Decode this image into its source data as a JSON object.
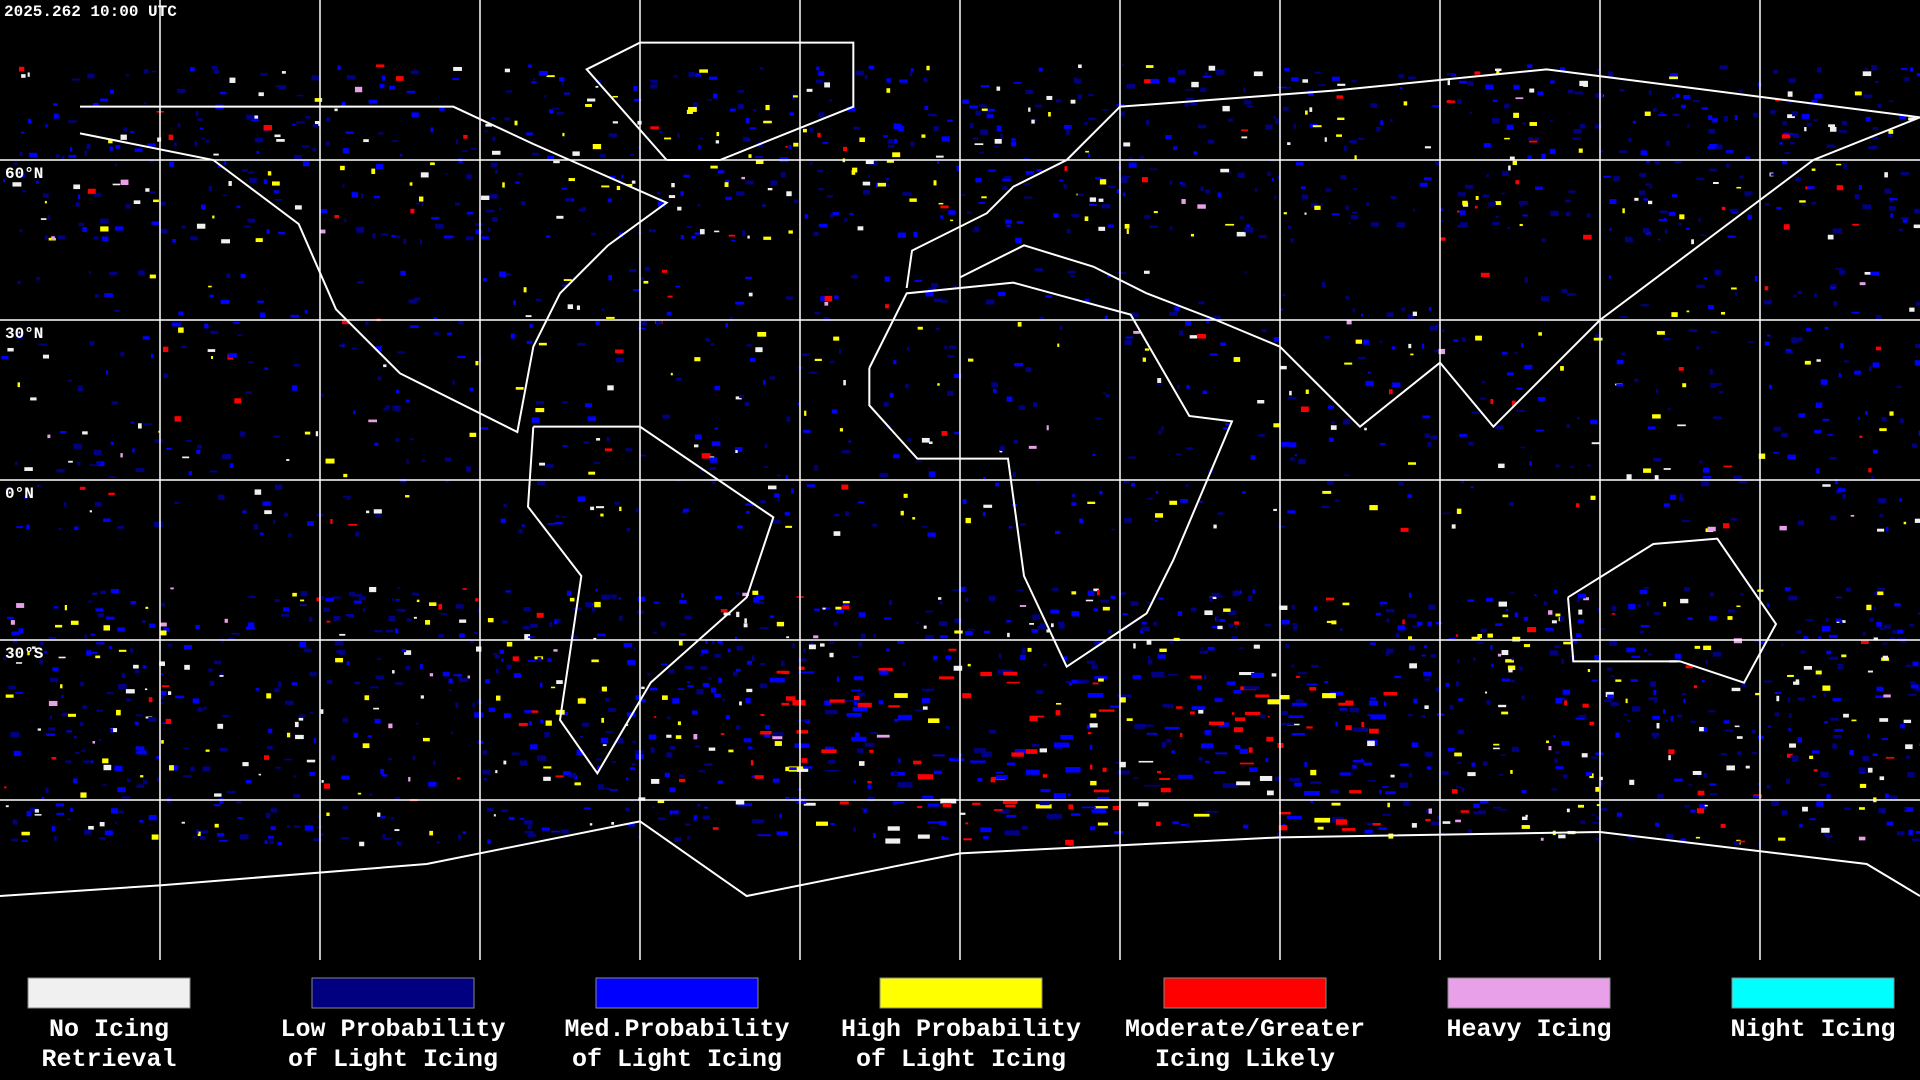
{
  "header": {
    "timestamp": "2025.262 10:00 UTC"
  },
  "map": {
    "latitude_labels": [
      "60°N",
      "30°N",
      "0°N",
      "30°S"
    ]
  },
  "legend": {
    "items": [
      {
        "label_lines": [
          "No Icing",
          "Retrieval"
        ],
        "color": "#f0f0f0"
      },
      {
        "label_lines": [
          "Low Probability",
          "of Light Icing"
        ],
        "color": "#000080"
      },
      {
        "label_lines": [
          "Med.Probability",
          "of Light Icing"
        ],
        "color": "#0000ff"
      },
      {
        "label_lines": [
          "High Probability",
          "of Light Icing"
        ],
        "color": "#ffff00"
      },
      {
        "label_lines": [
          "Moderate/Greater",
          "Icing Likely"
        ],
        "color": "#ff0000"
      },
      {
        "label_lines": [
          "Heavy Icing"
        ],
        "color": "#e8a0e8"
      },
      {
        "label_lines": [
          "Night Icing"
        ],
        "color": "#00ffff"
      }
    ]
  }
}
